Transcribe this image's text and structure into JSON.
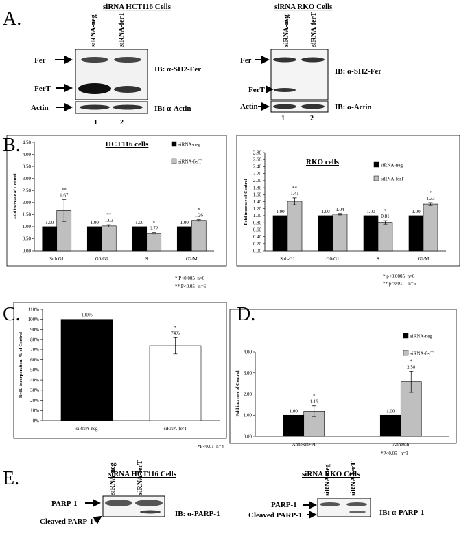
{
  "panel_labels": [
    "A.",
    "B.",
    "C.",
    "D.",
    "E."
  ],
  "blots": [
    {
      "title": "siRNA HCT116 Cells",
      "lanes": [
        "siRNA-neg",
        "siRNA-ferT"
      ],
      "bands": [
        "Fer",
        "FerT",
        "Actin"
      ],
      "antibodies": [
        "IB: α-SH2-Fer",
        "IB: α-Actin"
      ],
      "lane_numbers": [
        "1",
        "2"
      ]
    },
    {
      "title": "siRNA  RKO Cells",
      "lanes": [
        "siRNA-neg",
        "siRNA-ferT"
      ],
      "bands": [
        "Fer",
        "FerT",
        "Actin"
      ],
      "antibodies": [
        "IB: α-SH2-Fer",
        "IB: α-Actin"
      ],
      "lane_numbers": [
        "1",
        "2"
      ]
    },
    {
      "title": "siRNA HCT116 Cells",
      "lanes": [
        "siRNA-neg",
        "siRNA-ferT"
      ],
      "bands": [
        "PARP-1",
        "Cleaved PARP-1"
      ],
      "antibodies": [
        "IB: α-PARP-1"
      ]
    },
    {
      "title": "siRNA  RKO Cells",
      "lanes": [
        "siRNA-neg",
        "siRNA-ferT"
      ],
      "bands": [
        "PARP-1",
        "Cleaved PARP-1"
      ],
      "antibodies": [
        "IB: α-PARP-1"
      ]
    }
  ],
  "chart_data": [
    {
      "type": "bar",
      "title": "HCT116 cells",
      "ylabel": "Fold increase of Control",
      "categories": [
        "Sub G1",
        "G0/G1",
        "S",
        "G2/M"
      ],
      "series": [
        {
          "name": "siRNA-neg",
          "color": "#000000",
          "values": [
            1,
            1,
            1,
            1
          ],
          "value_labels": [
            "1.00",
            "1.00",
            "1.00",
            "1.00"
          ]
        },
        {
          "name": "siRNA-ferT",
          "color": "#bfbfbf",
          "values": [
            1.67,
            1.03,
            0.72,
            1.26
          ],
          "errors": [
            0.45,
            0.05,
            0.03,
            0.03
          ],
          "value_labels": [
            "1.67",
            "1.03",
            "0.72",
            "1.26"
          ],
          "significance": [
            "**",
            "**",
            "*",
            "*"
          ]
        }
      ],
      "ylim": [
        0,
        4.5
      ],
      "yticks": [
        {
          "value": 0,
          "label": "0.00"
        },
        {
          "value": 0.5,
          "label": "0.50"
        },
        {
          "value": 1,
          "label": "1.00"
        },
        {
          "value": 1.5,
          "label": "1.50"
        },
        {
          "value": 2,
          "label": "2.00"
        },
        {
          "value": 2.5,
          "label": "2.50"
        },
        {
          "value": 3,
          "label": "3.00"
        },
        {
          "value": 3.5,
          "label": "3.50"
        },
        {
          "value": 4,
          "label": "4.00"
        },
        {
          "value": 4.5,
          "label": "4.50"
        }
      ],
      "legend": "upper right",
      "footnotes": [
        "* P<0.005  n=6",
        "** P<0.05   n=6"
      ]
    },
    {
      "type": "bar",
      "title": "RKO cells",
      "ylabel": "Fold increase of Control",
      "categories": [
        "Sub-G1",
        "G0/G1",
        "S",
        "G2/M"
      ],
      "series": [
        {
          "name": "siRNA-neg",
          "color": "#000000",
          "values": [
            1,
            1,
            1,
            1
          ],
          "value_labels": [
            "1.00",
            "1.00",
            "1.00",
            "1.00"
          ]
        },
        {
          "name": "siRNA-ferT",
          "color": "#bfbfbf",
          "values": [
            1.41,
            1.04,
            0.81,
            1.33
          ],
          "errors": [
            0.1,
            0.02,
            0.05,
            0.04
          ],
          "value_labels": [
            "1.41",
            "1.04",
            "0.81",
            "1.33"
          ],
          "significance": [
            "**",
            null,
            "*",
            "*"
          ]
        }
      ],
      "ylim": [
        0,
        2.8
      ],
      "yticks": [
        {
          "value": 0,
          "label": "0.00"
        },
        {
          "value": 0.2,
          "label": "0.20"
        },
        {
          "value": 0.4,
          "label": "0.40"
        },
        {
          "value": 0.6,
          "label": "0.60"
        },
        {
          "value": 0.8,
          "label": "0.80"
        },
        {
          "value": 1,
          "label": "1.00"
        },
        {
          "value": 1.2,
          "label": "1.20"
        },
        {
          "value": 1.4,
          "label": "1.40"
        },
        {
          "value": 1.6,
          "label": "1.60"
        },
        {
          "value": 1.8,
          "label": "1.80"
        },
        {
          "value": 2,
          "label": "2.00"
        },
        {
          "value": 2.2,
          "label": "2.20"
        },
        {
          "value": 2.4,
          "label": "2.40"
        },
        {
          "value": 2.6,
          "label": "2.60"
        },
        {
          "value": 2.8,
          "label": "2.80"
        }
      ],
      "legend": "upper right",
      "footnotes": [
        "* p<0.0005  n=6",
        "** p<0.01     n=6"
      ]
    },
    {
      "type": "bar",
      "ylabel": "BrdU incorporation- % of Control",
      "categories": [
        "siRNA-neg",
        "siRNA-ferT"
      ],
      "series": [
        {
          "colors": [
            "#000000",
            "#ffffff"
          ],
          "values": [
            100,
            74
          ],
          "errors": [
            null,
            8
          ],
          "value_labels": [
            "100%",
            "74%"
          ],
          "significance": [
            null,
            "*"
          ]
        }
      ],
      "ylim": [
        0,
        110
      ],
      "yticks": [
        {
          "value": 0,
          "label": "0%"
        },
        {
          "value": 10,
          "label": "10%"
        },
        {
          "value": 20,
          "label": "20%"
        },
        {
          "value": 30,
          "label": "30%"
        },
        {
          "value": 40,
          "label": "40%"
        },
        {
          "value": 50,
          "label": "50%"
        },
        {
          "value": 60,
          "label": "60%"
        },
        {
          "value": 70,
          "label": "70%"
        },
        {
          "value": 80,
          "label": "80%"
        },
        {
          "value": 90,
          "label": "90%"
        },
        {
          "value": 100,
          "label": "100%"
        },
        {
          "value": 110,
          "label": "110%"
        }
      ],
      "footnotes": [
        "*P<0.01  n=4"
      ]
    },
    {
      "type": "bar",
      "ylabel": "Fold increase of Control",
      "categories": [
        "Annexin+PI",
        "Annexin"
      ],
      "series": [
        {
          "name": "siRNA-neg",
          "color": "#000000",
          "values": [
            1,
            1
          ],
          "value_labels": [
            "1.00",
            "1.00"
          ]
        },
        {
          "name": "siRNA-ferT",
          "color": "#bfbfbf",
          "values": [
            1.19,
            2.58
          ],
          "errors": [
            0.25,
            0.5
          ],
          "value_labels": [
            "1.19",
            "2.58"
          ],
          "significance": [
            "*",
            "*"
          ]
        }
      ],
      "ylim": [
        0,
        4
      ],
      "yticks": [
        {
          "value": 0,
          "label": "0.00"
        },
        {
          "value": 1,
          "label": "1.00"
        },
        {
          "value": 2,
          "label": "2.00"
        },
        {
          "value": 3,
          "label": "3.00"
        },
        {
          "value": 4,
          "label": "4.00"
        }
      ],
      "legend": "upper right",
      "footnotes": [
        "*P<0.05   n=3"
      ]
    }
  ]
}
